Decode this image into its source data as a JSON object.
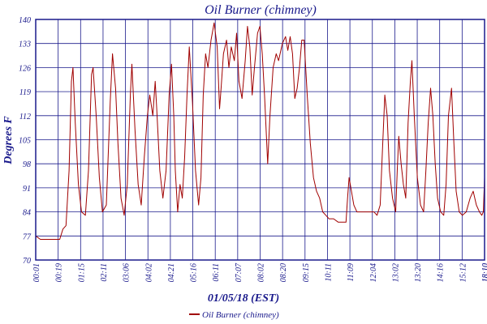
{
  "chart_data": {
    "type": "line",
    "title": "Oil Burner (chimney)",
    "xlabel": "01/05/18 (EST)",
    "ylabel": "Degrees F",
    "ylim": [
      70,
      140
    ],
    "y_ticks": [
      70,
      77,
      84,
      91,
      98,
      105,
      112,
      119,
      126,
      133,
      140
    ],
    "x_tick_labels": [
      "00:01",
      "00:19",
      "01:15",
      "02:11",
      "03:06",
      "04:02",
      "04:21",
      "05:16",
      "06:11",
      "07:07",
      "08:02",
      "08:20",
      "09:15",
      "10:11",
      "11:09",
      "12:04",
      "13:02",
      "13:20",
      "14:16",
      "15:12",
      "18:10",
      "18:10"
    ],
    "grid": true,
    "legend_position": "bottom-center",
    "series": [
      {
        "name": "Oil Burner (chimney)",
        "color": "#a00000",
        "points": [
          [
            0.0,
            77
          ],
          [
            0.3,
            76
          ],
          [
            1.0,
            76
          ],
          [
            1.55,
            76
          ],
          [
            1.75,
            79
          ],
          [
            1.95,
            80
          ],
          [
            2.15,
            96
          ],
          [
            2.3,
            122
          ],
          [
            2.4,
            126
          ],
          [
            2.55,
            110
          ],
          [
            2.75,
            92
          ],
          [
            2.95,
            84
          ],
          [
            3.2,
            83
          ],
          [
            3.4,
            96
          ],
          [
            3.6,
            124
          ],
          [
            3.7,
            126
          ],
          [
            3.9,
            112
          ],
          [
            4.1,
            94
          ],
          [
            4.3,
            84
          ],
          [
            4.55,
            86
          ],
          [
            4.8,
            116
          ],
          [
            4.95,
            130
          ],
          [
            5.15,
            120
          ],
          [
            5.3,
            104
          ],
          [
            5.5,
            88
          ],
          [
            5.7,
            83
          ],
          [
            5.9,
            92
          ],
          [
            6.1,
            118
          ],
          [
            6.2,
            127
          ],
          [
            6.4,
            108
          ],
          [
            6.6,
            92
          ],
          [
            6.8,
            86
          ],
          [
            7.0,
            100
          ],
          [
            7.2,
            112
          ],
          [
            7.35,
            118
          ],
          [
            7.55,
            112
          ],
          [
            7.7,
            122
          ],
          [
            7.8,
            114
          ],
          [
            8.0,
            96
          ],
          [
            8.2,
            88
          ],
          [
            8.4,
            96
          ],
          [
            8.6,
            118
          ],
          [
            8.75,
            127
          ],
          [
            8.9,
            112
          ],
          [
            9.0,
            96
          ],
          [
            9.15,
            84
          ],
          [
            9.3,
            92
          ],
          [
            9.45,
            88
          ],
          [
            9.6,
            100
          ],
          [
            9.75,
            118
          ],
          [
            9.9,
            132
          ],
          [
            10.1,
            116
          ],
          [
            10.3,
            96
          ],
          [
            10.5,
            86
          ],
          [
            10.65,
            94
          ],
          [
            10.8,
            118
          ],
          [
            10.95,
            130
          ],
          [
            11.1,
            126
          ],
          [
            11.3,
            134
          ],
          [
            11.5,
            139
          ],
          [
            11.7,
            132
          ],
          [
            11.85,
            114
          ],
          [
            11.95,
            120
          ],
          [
            12.1,
            130
          ],
          [
            12.3,
            134
          ],
          [
            12.45,
            126
          ],
          [
            12.6,
            132
          ],
          [
            12.8,
            128
          ],
          [
            12.95,
            136
          ],
          [
            13.1,
            122
          ],
          [
            13.3,
            117
          ],
          [
            13.5,
            128
          ],
          [
            13.65,
            138
          ],
          [
            13.8,
            132
          ],
          [
            13.95,
            118
          ],
          [
            14.1,
            126
          ],
          [
            14.3,
            136
          ],
          [
            14.45,
            138
          ],
          [
            14.6,
            130
          ],
          [
            14.75,
            118
          ],
          [
            14.95,
            98
          ],
          [
            15.1,
            112
          ],
          [
            15.3,
            126
          ],
          [
            15.5,
            130
          ],
          [
            15.65,
            128
          ],
          [
            15.9,
            133
          ],
          [
            16.1,
            135
          ],
          [
            16.25,
            131
          ],
          [
            16.4,
            135
          ],
          [
            16.55,
            130
          ],
          [
            16.7,
            117
          ],
          [
            16.85,
            120
          ],
          [
            17.0,
            126
          ],
          [
            17.15,
            134
          ],
          [
            17.3,
            134
          ],
          [
            17.5,
            118
          ],
          [
            17.7,
            104
          ],
          [
            17.9,
            94
          ],
          [
            18.1,
            90
          ],
          [
            18.3,
            88
          ],
          [
            18.5,
            84
          ],
          [
            18.7,
            83
          ],
          [
            18.9,
            82
          ],
          [
            19.2,
            82
          ],
          [
            19.5,
            81
          ],
          [
            19.8,
            81
          ],
          [
            20.0,
            81
          ],
          [
            20.1,
            88
          ],
          [
            20.2,
            94
          ],
          [
            20.35,
            90
          ],
          [
            20.5,
            86
          ],
          [
            20.7,
            84
          ],
          [
            21.0,
            84
          ],
          [
            21.3,
            84
          ],
          [
            21.6,
            84
          ],
          [
            21.8,
            84
          ],
          [
            22.0,
            83
          ],
          [
            22.2,
            86
          ],
          [
            22.35,
            102
          ],
          [
            22.5,
            118
          ],
          [
            22.65,
            112
          ],
          [
            22.8,
            96
          ],
          [
            23.0,
            88
          ],
          [
            23.2,
            84
          ],
          [
            23.3,
            96
          ],
          [
            23.4,
            106
          ],
          [
            23.55,
            98
          ],
          [
            23.7,
            92
          ],
          [
            23.85,
            88
          ],
          [
            24.0,
            110
          ],
          [
            24.15,
            122
          ],
          [
            24.25,
            128
          ],
          [
            24.4,
            112
          ],
          [
            24.6,
            94
          ],
          [
            24.8,
            86
          ],
          [
            25.0,
            84
          ],
          [
            25.15,
            96
          ],
          [
            25.3,
            110
          ],
          [
            25.45,
            120
          ],
          [
            25.6,
            112
          ],
          [
            25.75,
            98
          ],
          [
            25.9,
            88
          ],
          [
            26.1,
            84
          ],
          [
            26.3,
            83
          ],
          [
            26.45,
            92
          ],
          [
            26.6,
            112
          ],
          [
            26.8,
            120
          ],
          [
            26.95,
            104
          ],
          [
            27.1,
            90
          ],
          [
            27.3,
            84
          ],
          [
            27.5,
            83
          ],
          [
            27.75,
            84
          ],
          [
            28.0,
            88
          ],
          [
            28.2,
            90
          ],
          [
            28.4,
            86
          ],
          [
            28.6,
            84
          ],
          [
            28.75,
            83
          ],
          [
            28.85,
            84
          ],
          [
            28.93,
            94
          ]
        ]
      }
    ]
  }
}
